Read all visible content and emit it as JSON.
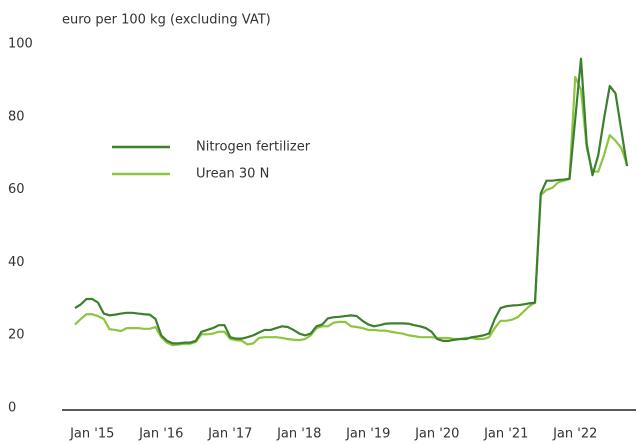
{
  "chart_data": {
    "type": "line",
    "y_axis_label": "euro per 100 kg (excluding VAT)",
    "categories": [
      null,
      null,
      null,
      "Jan '15",
      null,
      null,
      null,
      null,
      null,
      null,
      null,
      null,
      null,
      null,
      null,
      "Jan '16",
      null,
      null,
      null,
      null,
      null,
      null,
      null,
      null,
      null,
      null,
      null,
      "Jan '17",
      null,
      null,
      null,
      null,
      null,
      null,
      null,
      null,
      null,
      null,
      null,
      "Jan '18",
      null,
      null,
      null,
      null,
      null,
      null,
      null,
      null,
      null,
      null,
      null,
      "Jan '19",
      null,
      null,
      null,
      null,
      null,
      null,
      null,
      null,
      null,
      null,
      null,
      "Jan '20",
      null,
      null,
      null,
      null,
      null,
      null,
      null,
      null,
      null,
      null,
      null,
      "Jan '21",
      null,
      null,
      null,
      null,
      null,
      null,
      null,
      null,
      null,
      null,
      null,
      "Jan '22",
      null,
      null,
      null,
      null,
      null,
      null,
      null,
      null,
      null
    ],
    "series": [
      {
        "name": "Nitrogen fertilizer",
        "color": "#3b7f2f",
        "values": [
          28,
          29,
          30.5,
          30.5,
          29.5,
          26.5,
          26,
          26.2,
          26.5,
          26.7,
          26.7,
          26.5,
          26.3,
          26.2,
          25,
          20.5,
          19,
          18.3,
          18.3,
          18.5,
          18.5,
          19,
          21.5,
          22,
          22.5,
          23.3,
          23.3,
          20,
          19.6,
          19.6,
          20,
          20.5,
          21.3,
          22,
          22,
          22.5,
          23,
          22.8,
          22,
          21,
          20.5,
          21,
          23,
          23.5,
          25.2,
          25.5,
          25.6,
          25.8,
          26,
          25.8,
          24.5,
          23.5,
          23,
          23.3,
          23.7,
          23.8,
          23.8,
          23.8,
          23.7,
          23.3,
          23,
          22.5,
          21.5,
          19.5,
          19,
          19,
          19.3,
          19.5,
          19.5,
          20,
          20.2,
          20.5,
          21,
          25,
          28,
          28.5,
          28.7,
          28.8,
          29,
          29.3,
          29.5,
          59.5,
          63,
          63,
          63.2,
          63.3,
          63.5,
          80,
          96.5,
          73,
          64.5,
          70,
          80,
          89,
          87,
          77,
          67
        ]
      },
      {
        "name": "Urean 30 N",
        "color": "#8cc63f",
        "values": [
          23.5,
          25,
          26.3,
          26.3,
          25.8,
          25,
          22.2,
          22,
          21.7,
          22.5,
          22.5,
          22.5,
          22.3,
          22.3,
          22.8,
          20,
          18.5,
          17.8,
          18,
          18.2,
          18.2,
          18.7,
          20.8,
          20.8,
          21,
          21.5,
          21.5,
          19.5,
          19.2,
          19,
          18,
          18.3,
          19.8,
          20,
          20,
          20,
          19.8,
          19.5,
          19.3,
          19.2,
          19.5,
          20.5,
          22.5,
          23,
          23,
          24,
          24.2,
          24.2,
          23,
          22.8,
          22.5,
          22,
          22,
          21.8,
          21.8,
          21.5,
          21.2,
          21,
          20.5,
          20.3,
          20,
          20,
          20,
          19.8,
          19.8,
          19.8,
          19.5,
          19.5,
          19.8,
          19.8,
          19.5,
          19.5,
          20,
          22.5,
          24.5,
          24.5,
          24.8,
          25.5,
          27,
          28.5,
          29.5,
          59,
          60.5,
          61,
          62.5,
          63,
          63.5,
          91.5,
          88,
          72,
          65.5,
          65.5,
          70,
          75.5,
          74,
          72,
          67.5
        ]
      }
    ],
    "ylim": [
      0,
      100
    ],
    "yticks": [
      0,
      20,
      40,
      60,
      80,
      100
    ],
    "grid": false,
    "legend": "upper left"
  }
}
